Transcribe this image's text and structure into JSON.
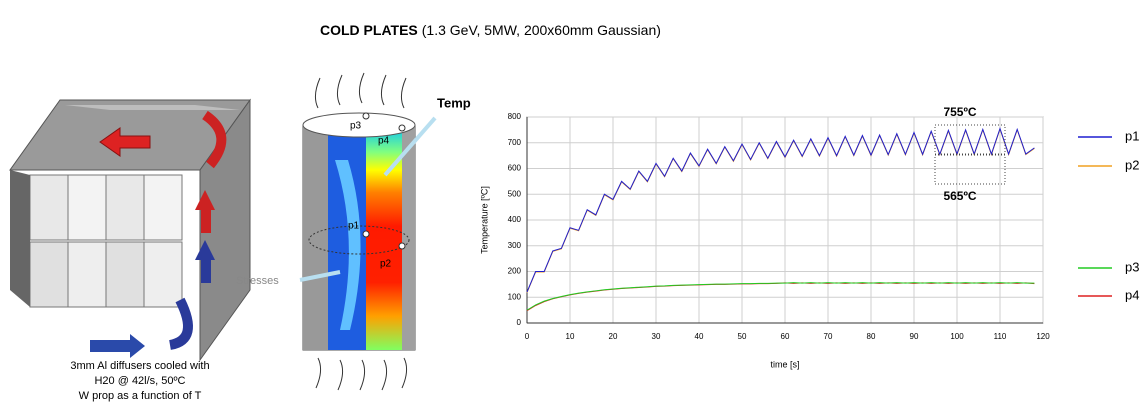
{
  "title": {
    "bold": "COLD PLATES",
    "rest": "(1.3 GeV, 5MW, 200x60mm Gaussian)"
  },
  "cube": {
    "caption": [
      "3mm Al  diffusers cooled with",
      "H20 @ 42l/s, 50ºC",
      "W prop as a function of T"
    ]
  },
  "cylinder": {
    "labels": [
      "p3",
      "p4",
      "p1",
      "p2"
    ],
    "temp": "Temp",
    "stresses": "Stresses"
  },
  "chart_data": {
    "type": "line",
    "xlabel": "time [s]",
    "ylabel": "Temperature [ºC]",
    "x": [
      0,
      2,
      4,
      6,
      8,
      10,
      12,
      14,
      16,
      18,
      20,
      22,
      24,
      26,
      28,
      30,
      32,
      34,
      36,
      38,
      40,
      42,
      44,
      46,
      48,
      50,
      52,
      54,
      56,
      58,
      60,
      62,
      64,
      66,
      68,
      70,
      72,
      74,
      76,
      78,
      80,
      82,
      84,
      86,
      88,
      90,
      92,
      94,
      96,
      98,
      100,
      102,
      104,
      106,
      108,
      110,
      112,
      114,
      116,
      118
    ],
    "series": [
      {
        "name": "p1",
        "color": "#1f1fd0",
        "values": [
          120,
          200,
          200,
          280,
          290,
          370,
          360,
          440,
          420,
          500,
          480,
          550,
          520,
          590,
          550,
          620,
          570,
          640,
          590,
          660,
          610,
          675,
          620,
          685,
          630,
          695,
          635,
          700,
          640,
          705,
          645,
          710,
          648,
          715,
          650,
          720,
          650,
          725,
          652,
          728,
          652,
          730,
          654,
          735,
          655,
          740,
          655,
          745,
          655,
          748,
          656,
          750,
          656,
          752,
          656,
          755,
          656,
          752,
          656,
          680
        ]
      },
      {
        "name": "p2",
        "color": "#f0a020",
        "values": [
          118,
          198,
          198,
          278,
          288,
          368,
          358,
          438,
          418,
          498,
          478,
          548,
          518,
          588,
          548,
          618,
          568,
          638,
          588,
          658,
          608,
          673,
          618,
          683,
          628,
          693,
          633,
          698,
          638,
          703,
          643,
          708,
          646,
          713,
          648,
          718,
          648,
          723,
          650,
          726,
          650,
          728,
          652,
          733,
          653,
          738,
          653,
          743,
          653,
          746,
          654,
          748,
          654,
          750,
          654,
          753,
          654,
          750,
          654,
          678
        ]
      },
      {
        "name": "p3",
        "color": "#22cc22",
        "values": [
          50,
          70,
          85,
          95,
          103,
          110,
          116,
          121,
          125,
          129,
          132,
          135,
          137,
          139,
          141,
          143,
          144,
          146,
          147,
          148,
          149,
          150,
          151,
          151,
          152,
          153,
          153,
          154,
          154,
          155,
          155,
          157,
          155,
          157,
          155,
          157,
          155,
          157,
          155,
          157,
          155,
          157,
          155,
          157,
          155,
          157,
          155,
          157,
          155,
          157,
          155,
          157,
          155,
          157,
          155,
          157,
          155,
          157,
          155,
          155
        ]
      },
      {
        "name": "p4",
        "color": "#dd2020",
        "values": [
          48,
          68,
          83,
          94,
          102,
          109,
          115,
          120,
          124,
          128,
          131,
          134,
          136,
          138,
          140,
          142,
          143,
          145,
          146,
          147,
          148,
          149,
          150,
          150,
          151,
          152,
          152,
          153,
          153,
          154,
          156,
          154,
          156,
          154,
          156,
          154,
          156,
          154,
          156,
          154,
          156,
          154,
          156,
          154,
          156,
          154,
          156,
          154,
          156,
          154,
          156,
          154,
          156,
          154,
          156,
          154,
          156,
          154,
          156,
          153
        ]
      }
    ],
    "xlim": [
      0,
      120
    ],
    "ylim": [
      0,
      800
    ],
    "xticks": [
      0,
      10,
      20,
      30,
      40,
      50,
      60,
      70,
      80,
      90,
      100,
      110,
      120
    ],
    "yticks": [
      0,
      100,
      200,
      300,
      400,
      500,
      600,
      700,
      800
    ],
    "grid": true,
    "legend": "right",
    "annotations": [
      "755ºC",
      "565ºC"
    ]
  }
}
